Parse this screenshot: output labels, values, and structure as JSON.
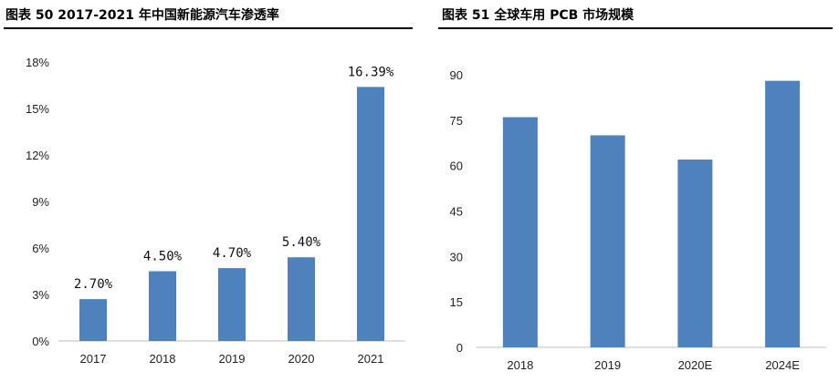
{
  "headers": {
    "left_title": "图表 50 2017-2021 年中国新能源汽车渗透率",
    "right_title": "图表 51 全球车用 PCB 市场规模"
  },
  "chart_data": [
    {
      "type": "bar",
      "categories": [
        "2017",
        "2018",
        "2019",
        "2020",
        "2021"
      ],
      "values": [
        2.7,
        4.5,
        4.7,
        5.4,
        16.39
      ],
      "data_labels": [
        "2.70%",
        "4.50%",
        "4.70%",
        "5.40%",
        "16.39%"
      ],
      "yticks": [
        "0%",
        "3%",
        "6%",
        "9%",
        "12%",
        "15%",
        "18%"
      ],
      "ylim": [
        0,
        18
      ],
      "bar_color": "#4f81bd",
      "grid": false,
      "legend": "none"
    },
    {
      "type": "bar",
      "categories": [
        "2018",
        "2019",
        "2020E",
        "2024E"
      ],
      "values": [
        76,
        70,
        62,
        88
      ],
      "yticks": [
        "0",
        "15",
        "30",
        "45",
        "60",
        "75",
        "90"
      ],
      "ylim": [
        0,
        90
      ],
      "bar_color": "#4f81bd",
      "grid": false,
      "legend": "none"
    }
  ]
}
